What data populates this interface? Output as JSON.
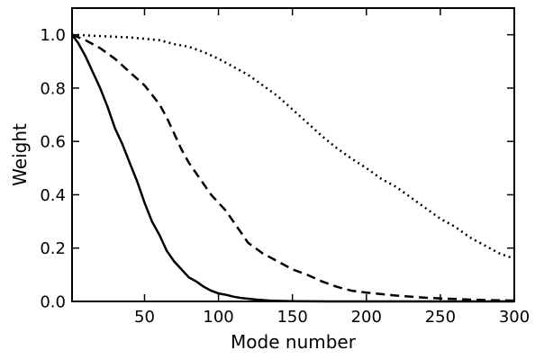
{
  "chart_data": {
    "type": "line",
    "title": "",
    "xlabel": "Mode number",
    "ylabel": "Weight",
    "xlim": [
      1,
      300
    ],
    "ylim": [
      0.0,
      1.1
    ],
    "x_ticks": [
      50,
      100,
      150,
      200,
      250,
      300
    ],
    "x_tick_labels": [
      "50",
      "100",
      "150",
      "200",
      "250",
      "300"
    ],
    "y_ticks": [
      0.0,
      0.2,
      0.4,
      0.6,
      0.8,
      1.0
    ],
    "y_tick_labels": [
      "0.0",
      "0.2",
      "0.4",
      "0.6",
      "0.8",
      "1.0"
    ],
    "grid": false,
    "legend": "none",
    "series": [
      {
        "style": "solid",
        "color": "#000000",
        "x": [
          1,
          5,
          10,
          15,
          20,
          25,
          30,
          35,
          40,
          45,
          50,
          55,
          60,
          65,
          70,
          75,
          80,
          85,
          90,
          95,
          100,
          105,
          110,
          115,
          120,
          125,
          130,
          135,
          140,
          150,
          175,
          200,
          250,
          300
        ],
        "y": [
          1.0,
          0.97,
          0.92,
          0.86,
          0.8,
          0.73,
          0.65,
          0.59,
          0.52,
          0.45,
          0.37,
          0.3,
          0.25,
          0.19,
          0.15,
          0.12,
          0.09,
          0.075,
          0.055,
          0.04,
          0.03,
          0.025,
          0.018,
          0.013,
          0.01,
          0.007,
          0.005,
          0.003,
          0.002,
          0.001,
          0.0,
          0.0,
          0.0,
          0.0
        ]
      },
      {
        "style": "dashed",
        "color": "#000000",
        "x": [
          1,
          10,
          20,
          30,
          40,
          50,
          60,
          65,
          70,
          75,
          80,
          85,
          90,
          95,
          100,
          105,
          110,
          115,
          120,
          125,
          130,
          140,
          150,
          160,
          170,
          180,
          190,
          200,
          220,
          240,
          260,
          280,
          300
        ],
        "y": [
          1.0,
          0.98,
          0.95,
          0.91,
          0.86,
          0.81,
          0.74,
          0.69,
          0.63,
          0.57,
          0.52,
          0.48,
          0.44,
          0.4,
          0.37,
          0.34,
          0.3,
          0.26,
          0.22,
          0.2,
          0.18,
          0.15,
          0.12,
          0.1,
          0.075,
          0.055,
          0.04,
          0.033,
          0.022,
          0.014,
          0.009,
          0.005,
          0.003
        ]
      },
      {
        "style": "dotted",
        "color": "#000000",
        "x": [
          1,
          20,
          40,
          60,
          70,
          80,
          90,
          100,
          110,
          120,
          130,
          140,
          150,
          160,
          170,
          180,
          190,
          200,
          210,
          220,
          230,
          240,
          250,
          260,
          270,
          280,
          290,
          300
        ],
        "y": [
          1.0,
          0.995,
          0.99,
          0.98,
          0.965,
          0.955,
          0.935,
          0.91,
          0.88,
          0.85,
          0.81,
          0.77,
          0.72,
          0.67,
          0.62,
          0.575,
          0.535,
          0.5,
          0.46,
          0.43,
          0.39,
          0.35,
          0.31,
          0.28,
          0.24,
          0.21,
          0.18,
          0.16
        ]
      }
    ]
  }
}
